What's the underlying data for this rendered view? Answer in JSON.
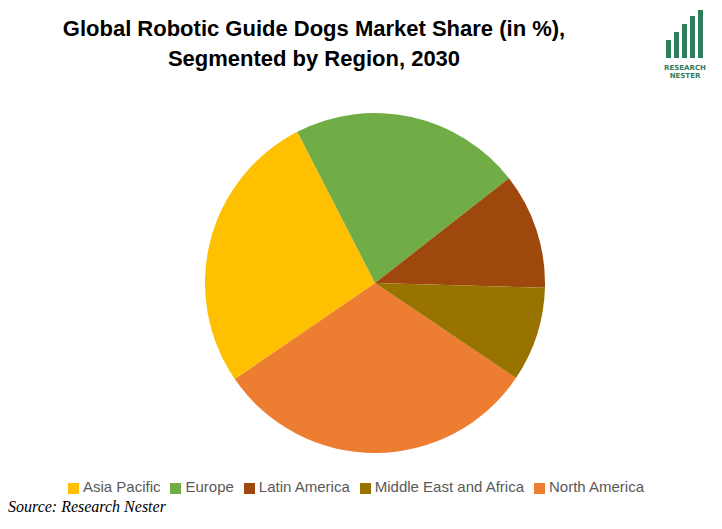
{
  "chart_data": {
    "type": "pie",
    "title": "Global Robotic Guide Dogs Market Share (in %), Segmented by Region, 2030",
    "categories": [
      "North America",
      "Asia Pacific",
      "Europe",
      "Latin America",
      "Middle East and Africa"
    ],
    "values": [
      31,
      27,
      22,
      11,
      9
    ],
    "colors": [
      "#ed7d31",
      "#ffc000",
      "#70ad47",
      "#9e480e",
      "#997300"
    ],
    "legend": "bottom",
    "data_labels": false
  },
  "source": "Source: Research Nester",
  "logo": [
    "RESEARCH",
    "NESTER"
  ]
}
